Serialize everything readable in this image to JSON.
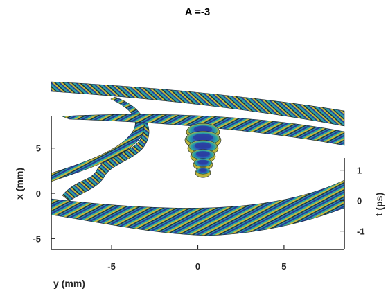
{
  "chart_data": {
    "type": "surface",
    "title": "A =-3",
    "xlabel": "y (mm)",
    "ylabel": "x (mm)",
    "zlabel": "t (ps)",
    "x_ticks": [
      "-5",
      "0",
      "5"
    ],
    "y_ticks": [
      "5",
      "0",
      "-5"
    ],
    "z_ticks": [
      "1",
      "0",
      "-1"
    ],
    "x_tick_values": [
      -5,
      0,
      5
    ],
    "y_tick_values": [
      5,
      0,
      -5
    ],
    "z_tick_values": [
      1,
      0,
      -1
    ],
    "xlim": [
      -8.5,
      8.5
    ],
    "ylim": [
      -6.2,
      8.5
    ],
    "zlim": [
      -1.6,
      1.4
    ],
    "grid": false,
    "colormap": [
      "#2a3ea0",
      "#1f7ab8",
      "#2aa8a2",
      "#b9b43a",
      "#e6c22a"
    ],
    "edge_color": "#17252e",
    "central_lobe": {
      "y_mm": 0.3,
      "x_mm_range": [
        2.5,
        7.0
      ],
      "rings": 6
    }
  }
}
